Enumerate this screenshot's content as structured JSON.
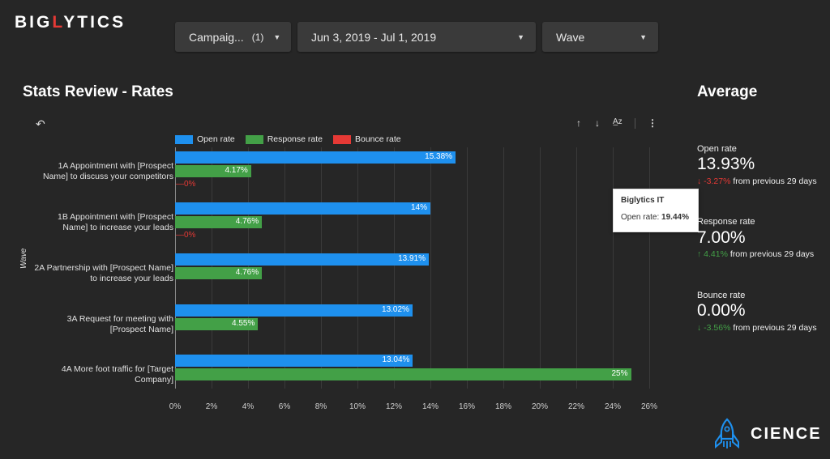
{
  "brand": {
    "logo_pre": "BIG",
    "logo_o": "L",
    "logo_post": "YTICS"
  },
  "filters": {
    "campaign": {
      "label": "Campaig...",
      "count": "(1)"
    },
    "date_range": {
      "label": "Jun 3, 2019 - Jul 1, 2019"
    },
    "dimension": {
      "label": "Wave"
    }
  },
  "section_title": "Stats Review - Rates",
  "average_title": "Average",
  "colors": {
    "open": "#1e90ee",
    "response": "#43a047",
    "bounce": "#e53935",
    "up": "#43a047",
    "down_red": "#e53935"
  },
  "chart_data": {
    "type": "bar",
    "orientation": "horizontal",
    "ylabel": "Wave",
    "xlim": [
      0,
      26
    ],
    "ticks": [
      "0%",
      "2%",
      "4%",
      "6%",
      "8%",
      "10%",
      "12%",
      "14%",
      "16%",
      "18%",
      "20%",
      "22%",
      "24%",
      "26%"
    ],
    "categories": [
      [
        "1A Appointment with [Prospect",
        "Name] to discuss your competitors"
      ],
      [
        "1B Appointment with [Prospect",
        "Name] to increase your leads"
      ],
      [
        "2A Partnership with [Prospect Name]",
        "to increase your leads"
      ],
      [
        "3A Request for meeting with",
        "[Prospect Name]"
      ],
      [
        "4A More foot traffic for [Target",
        "Company]"
      ]
    ],
    "series": [
      {
        "name": "Open rate",
        "values": [
          15.38,
          14,
          13.91,
          13.02,
          13.04
        ],
        "labels": [
          "15.38%",
          "14%",
          "13.91%",
          "13.02%",
          "13.04%"
        ]
      },
      {
        "name": "Response rate",
        "values": [
          4.17,
          4.76,
          4.76,
          4.55,
          25
        ],
        "labels": [
          "4.17%",
          "4.76%",
          "4.76%",
          "4.55%",
          "25%"
        ]
      },
      {
        "name": "Bounce rate",
        "values": [
          0,
          0,
          null,
          null,
          null
        ],
        "labels": [
          "0%",
          "0%",
          null,
          null,
          null
        ]
      }
    ]
  },
  "tooltip": {
    "title": "Biglytics IT",
    "label": "Open rate:",
    "value": "19.44%"
  },
  "metrics": [
    {
      "name": "Open rate",
      "value": "13.93%",
      "arrow": "↓",
      "delta": "-3.27%",
      "suffix": "from previous 29 days",
      "color": "#e53935"
    },
    {
      "name": "Response rate",
      "value": "7.00%",
      "arrow": "↑",
      "delta": "4.41%",
      "suffix": "from previous 29 days",
      "color": "#43a047"
    },
    {
      "name": "Bounce rate",
      "value": "0.00%",
      "arrow": "↓",
      "delta": "-3.56%",
      "suffix": "from previous 29 days",
      "color": "#43a047"
    }
  ],
  "footer_brand": "CIENCE"
}
